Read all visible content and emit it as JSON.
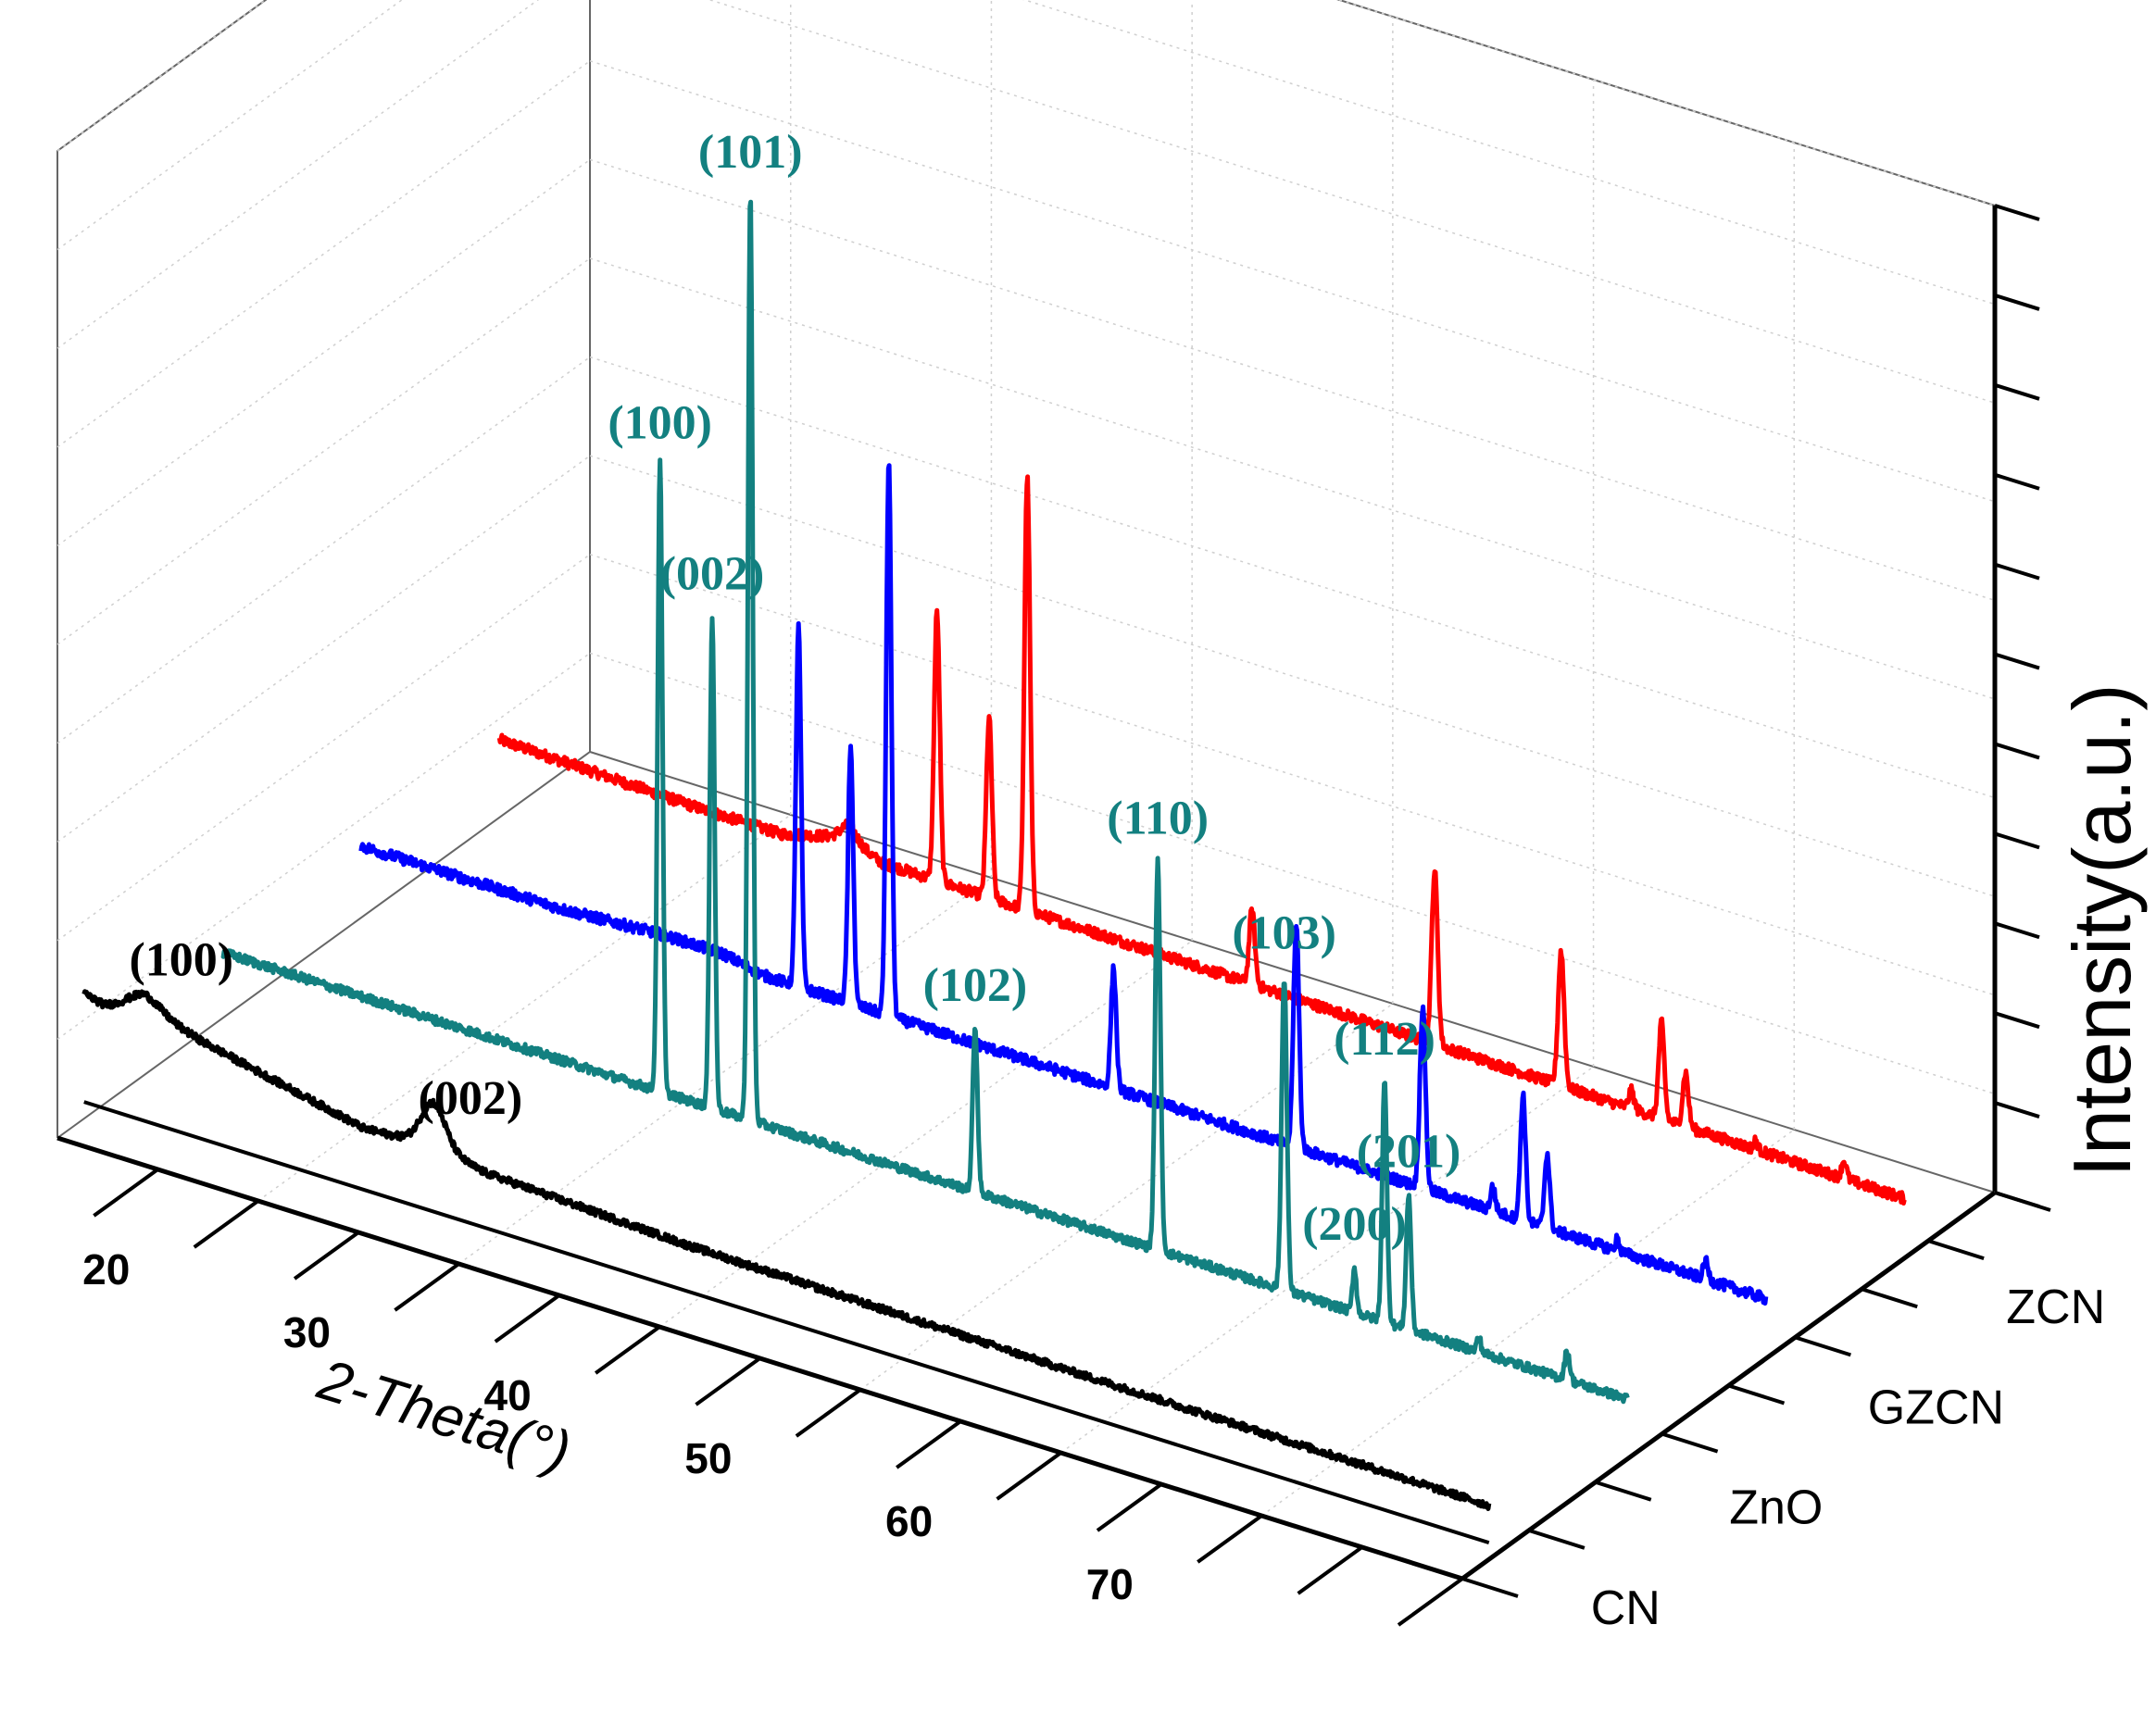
{
  "chart_data": {
    "type": "line",
    "style": "3d-waterfall",
    "title": "",
    "xlabel": "2-Theta(°)",
    "zlabel": "Intensity(a.u.)",
    "xlim": [
      10,
      80
    ],
    "x_ticks": [
      "20",
      "30",
      "40",
      "50",
      "60",
      "70"
    ],
    "series": [
      {
        "name": "CN",
        "color": "#000000",
        "base": 18,
        "noise": 1.2,
        "background": [
          [
            10,
            24
          ],
          [
            11,
            22
          ],
          [
            13,
            26
          ],
          [
            16,
            20
          ],
          [
            20,
            14
          ],
          [
            24,
            8
          ],
          [
            27.4,
            10
          ],
          [
            30,
            6
          ],
          [
            40,
            3
          ],
          [
            60,
            1
          ],
          [
            80,
            0
          ]
        ],
        "peaks": [
          [
            13.0,
            4,
            0.8
          ],
          [
            27.4,
            14,
            0.6
          ]
        ]
      },
      {
        "name": "ZnO",
        "color": "#138080",
        "base": 20,
        "noise": 1.5,
        "background": [
          [
            10,
            2
          ],
          [
            80,
            0
          ]
        ],
        "peaks": [
          [
            31.8,
            210,
            0.12
          ],
          [
            34.4,
            165,
            0.12
          ],
          [
            36.3,
            310,
            0.12
          ],
          [
            47.5,
            55,
            0.12
          ],
          [
            56.6,
            130,
            0.13
          ],
          [
            62.9,
            105,
            0.13
          ],
          [
            66.4,
            15,
            0.1
          ],
          [
            67.9,
            80,
            0.12
          ],
          [
            69.1,
            45,
            0.12
          ],
          [
            72.6,
            5,
            0.1
          ],
          [
            77.0,
            10,
            0.12
          ]
        ],
        "labels": [
          {
            "text": "(100)",
            "x": 31.8
          },
          {
            "text": "(002)",
            "x": 34.4
          },
          {
            "text": "(101)",
            "x": 36.3
          },
          {
            "text": "(102)",
            "x": 47.5
          },
          {
            "text": "(110)",
            "x": 56.6
          },
          {
            "text": "(103)",
            "x": 62.9
          },
          {
            "text": "(200)",
            "x": 66.4
          },
          {
            "text": "(112)",
            "x": 67.9
          },
          {
            "text": "(201)",
            "x": 69.1
          }
        ]
      },
      {
        "name": "GZCN",
        "color": "#0000ff",
        "base": 20,
        "noise": 1.8,
        "background": [
          [
            10,
            4
          ],
          [
            20,
            4
          ],
          [
            25,
            6
          ],
          [
            28,
            6
          ],
          [
            30,
            3
          ],
          [
            80,
            0
          ]
        ],
        "peaks": [
          [
            31.8,
            120,
            0.13
          ],
          [
            34.4,
            85,
            0.13
          ],
          [
            36.3,
            185,
            0.13
          ],
          [
            47.5,
            40,
            0.13
          ],
          [
            56.6,
            75,
            0.14
          ],
          [
            62.9,
            60,
            0.14
          ],
          [
            66.4,
            8,
            0.12
          ],
          [
            67.9,
            42,
            0.13
          ],
          [
            69.1,
            25,
            0.13
          ],
          [
            72.6,
            4,
            0.1
          ],
          [
            77.0,
            6,
            0.12
          ]
        ],
        "labels": []
      },
      {
        "name": "ZCN",
        "color": "#ff0000",
        "base": 20,
        "noise": 1.8,
        "background": [
          [
            10,
            6
          ],
          [
            20,
            4
          ],
          [
            24,
            4
          ],
          [
            27.4,
            10
          ],
          [
            29,
            5
          ],
          [
            80,
            0
          ]
        ],
        "peaks": [
          [
            27.4,
            4,
            0.4
          ],
          [
            31.8,
            90,
            0.14
          ],
          [
            34.4,
            60,
            0.14
          ],
          [
            36.3,
            145,
            0.14
          ],
          [
            47.5,
            25,
            0.14
          ],
          [
            56.6,
            58,
            0.15
          ],
          [
            62.9,
            45,
            0.15
          ],
          [
            66.4,
            6,
            0.13
          ],
          [
            67.9,
            32,
            0.14
          ],
          [
            69.1,
            18,
            0.14
          ],
          [
            72.6,
            3,
            0.1
          ],
          [
            77.0,
            6,
            0.12
          ]
        ],
        "labels": []
      }
    ],
    "cn_labels": [
      {
        "text": "(100)",
        "x": 13.0
      },
      {
        "text": "(002)",
        "x": 27.4
      }
    ],
    "ylim": [
      0,
      330
    ]
  }
}
